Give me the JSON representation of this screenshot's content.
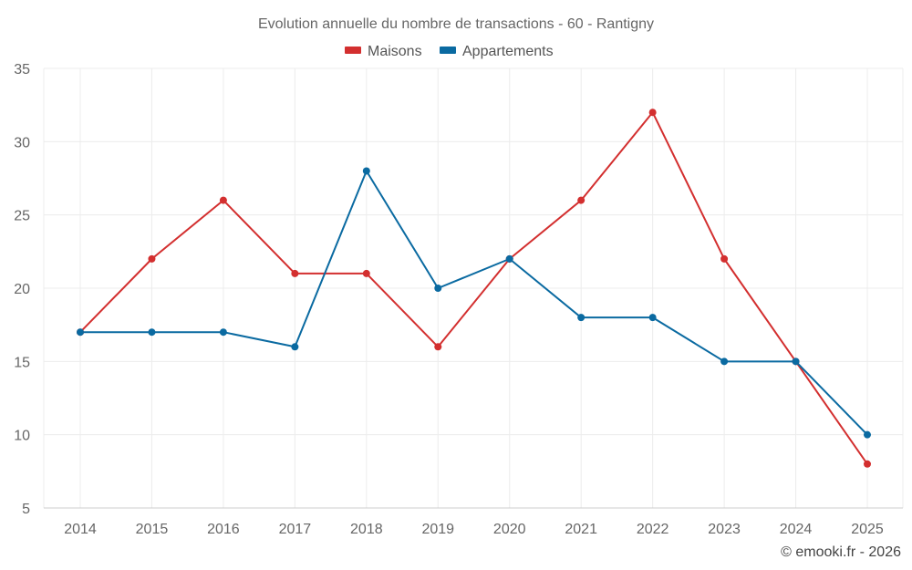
{
  "chart_data": {
    "type": "line",
    "title": "Evolution annuelle du nombre de transactions - 60 - Rantigny",
    "categories": [
      "2014",
      "2015",
      "2016",
      "2017",
      "2018",
      "2019",
      "2020",
      "2021",
      "2022",
      "2023",
      "2024",
      "2025"
    ],
    "series": [
      {
        "name": "Maisons",
        "color": "#d32f2f",
        "values": [
          17,
          22,
          26,
          21,
          21,
          16,
          22,
          26,
          32,
          22,
          15,
          8
        ]
      },
      {
        "name": "Appartements",
        "color": "#0a6aa1",
        "values": [
          17,
          17,
          17,
          16,
          28,
          20,
          22,
          18,
          18,
          15,
          15,
          10
        ]
      }
    ],
    "ylim": [
      5,
      35
    ],
    "yticks": [
      5,
      10,
      15,
      20,
      25,
      30,
      35
    ],
    "xlabel": "",
    "ylabel": "",
    "grid": true,
    "legend_position": "top-center"
  },
  "credit": "© emooki.fr - 2026"
}
